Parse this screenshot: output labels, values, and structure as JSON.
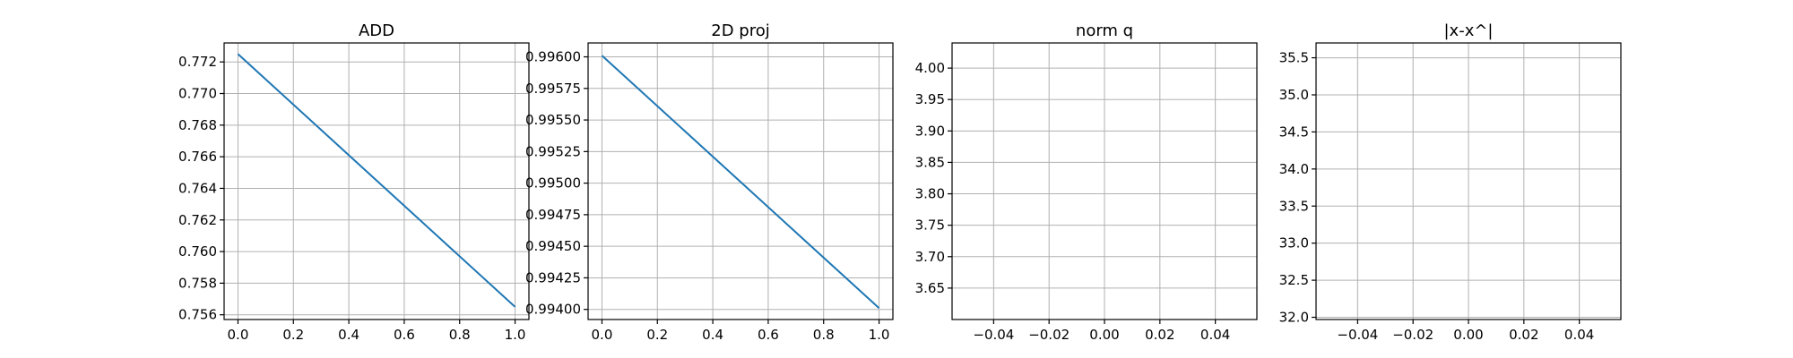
{
  "chart_data": [
    {
      "type": "line",
      "title": "ADD",
      "xlabel": "",
      "ylabel": "",
      "grid": true,
      "xlim": [
        -0.05,
        1.05
      ],
      "ylim": [
        0.7557,
        0.7732
      ],
      "xticks": [
        0.0,
        0.2,
        0.4,
        0.6,
        0.8,
        1.0
      ],
      "xtick_labels": [
        "0.0",
        "0.2",
        "0.4",
        "0.6",
        "0.8",
        "1.0"
      ],
      "yticks": [
        0.756,
        0.758,
        0.76,
        0.762,
        0.764,
        0.766,
        0.768,
        0.77,
        0.772
      ],
      "ytick_labels": [
        "0.756",
        "0.758",
        "0.760",
        "0.762",
        "0.764",
        "0.766",
        "0.768",
        "0.770",
        "0.772"
      ],
      "series": [
        {
          "color": "#1f77b4",
          "x": [
            0,
            1
          ],
          "y": [
            0.7725,
            0.7565
          ]
        }
      ]
    },
    {
      "type": "line",
      "title": "2D proj",
      "xlabel": "",
      "ylabel": "",
      "grid": true,
      "xlim": [
        -0.05,
        1.05
      ],
      "ylim": [
        0.99392,
        0.99611
      ],
      "xticks": [
        0.0,
        0.2,
        0.4,
        0.6,
        0.8,
        1.0
      ],
      "xtick_labels": [
        "0.0",
        "0.2",
        "0.4",
        "0.6",
        "0.8",
        "1.0"
      ],
      "yticks": [
        0.994,
        0.99425,
        0.9945,
        0.99475,
        0.995,
        0.99525,
        0.9955,
        0.99575,
        0.996
      ],
      "ytick_labels": [
        "0.99400",
        "0.99425",
        "0.99450",
        "0.99475",
        "0.99500",
        "0.99525",
        "0.99550",
        "0.99575",
        "0.99600"
      ],
      "series": [
        {
          "color": "#1f77b4",
          "x": [
            0,
            1
          ],
          "y": [
            0.99601,
            0.99401
          ]
        }
      ]
    },
    {
      "type": "line",
      "title": "norm q",
      "xlabel": "",
      "ylabel": "",
      "grid": true,
      "xlim": [
        -0.055,
        0.055
      ],
      "ylim": [
        3.6,
        4.04
      ],
      "xticks": [
        -0.04,
        -0.02,
        0.0,
        0.02,
        0.04
      ],
      "xtick_labels": [
        "−0.04",
        "−0.02",
        "0.00",
        "0.02",
        "0.04"
      ],
      "yticks": [
        3.65,
        3.7,
        3.75,
        3.8,
        3.85,
        3.9,
        3.95,
        4.0
      ],
      "ytick_labels": [
        "3.65",
        "3.70",
        "3.75",
        "3.80",
        "3.85",
        "3.90",
        "3.95",
        "4.00"
      ],
      "series": []
    },
    {
      "type": "line",
      "title": "|x-x^|",
      "xlabel": "",
      "ylabel": "",
      "grid": true,
      "xlim": [
        -0.055,
        0.055
      ],
      "ylim": [
        31.97,
        35.7
      ],
      "xticks": [
        -0.04,
        -0.02,
        0.0,
        0.02,
        0.04
      ],
      "xtick_labels": [
        "−0.04",
        "−0.02",
        "0.00",
        "0.02",
        "0.04"
      ],
      "yticks": [
        32.0,
        32.5,
        33.0,
        33.5,
        34.0,
        34.5,
        35.0,
        35.5
      ],
      "ytick_labels": [
        "32.0",
        "32.5",
        "33.0",
        "33.5",
        "34.0",
        "34.5",
        "35.0",
        "35.5"
      ],
      "series": []
    }
  ]
}
